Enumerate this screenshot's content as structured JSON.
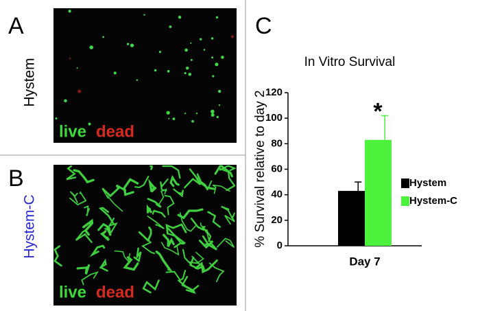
{
  "panels": [
    {
      "label": "A",
      "condition": "Hystem",
      "stain_live": "live",
      "stain_dead": "dead"
    },
    {
      "label": "B",
      "condition": "Hystem-C",
      "stain_live": "live",
      "stain_dead": "dead"
    }
  ],
  "chart_data": {
    "type": "bar",
    "panel_label": "C",
    "title": "In Vitro Survival",
    "y_label": "% Survival relative to day 2",
    "categories": [
      "Day 7"
    ],
    "series": [
      {
        "name": "Hystem",
        "color": "#000000",
        "values": [
          43
        ],
        "errors": [
          7
        ]
      },
      {
        "name": "Hystem-C",
        "color": "#4cf23c",
        "values": [
          83
        ],
        "errors": [
          19
        ]
      }
    ],
    "annotation": "*",
    "ylim": [
      0,
      120
    ],
    "yticks": [
      0,
      20,
      40,
      60,
      80,
      100,
      120
    ],
    "grid": false
  }
}
